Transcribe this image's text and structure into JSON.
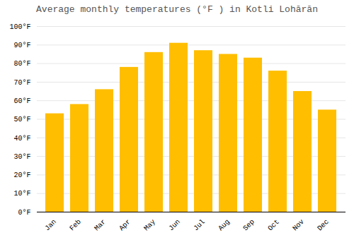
{
  "chart_data": {
    "type": "bar",
    "title": "Average monthly temperatures (°F ) in Kotli Lohārān",
    "categories": [
      "Jan",
      "Feb",
      "Mar",
      "Apr",
      "May",
      "Jun",
      "Jul",
      "Aug",
      "Sep",
      "Oct",
      "Nov",
      "Dec"
    ],
    "values": [
      53,
      58,
      66,
      78,
      86,
      91,
      87,
      85,
      83,
      76,
      65,
      55
    ],
    "color": "#FFBE00",
    "ylim": [
      0,
      100
    ],
    "yticks": [
      {
        "value": 0,
        "label": "0°F"
      },
      {
        "value": 10,
        "label": "10°F"
      },
      {
        "value": 20,
        "label": "20°F"
      },
      {
        "value": 30,
        "label": "30°F"
      },
      {
        "value": 40,
        "label": "40°F"
      },
      {
        "value": 50,
        "label": "50°F"
      },
      {
        "value": 60,
        "label": "60°F"
      },
      {
        "value": 70,
        "label": "70°F"
      },
      {
        "value": 80,
        "label": "80°F"
      },
      {
        "value": 90,
        "label": "90°F"
      },
      {
        "value": 100,
        "label": "100°F"
      }
    ],
    "grid": true
  }
}
